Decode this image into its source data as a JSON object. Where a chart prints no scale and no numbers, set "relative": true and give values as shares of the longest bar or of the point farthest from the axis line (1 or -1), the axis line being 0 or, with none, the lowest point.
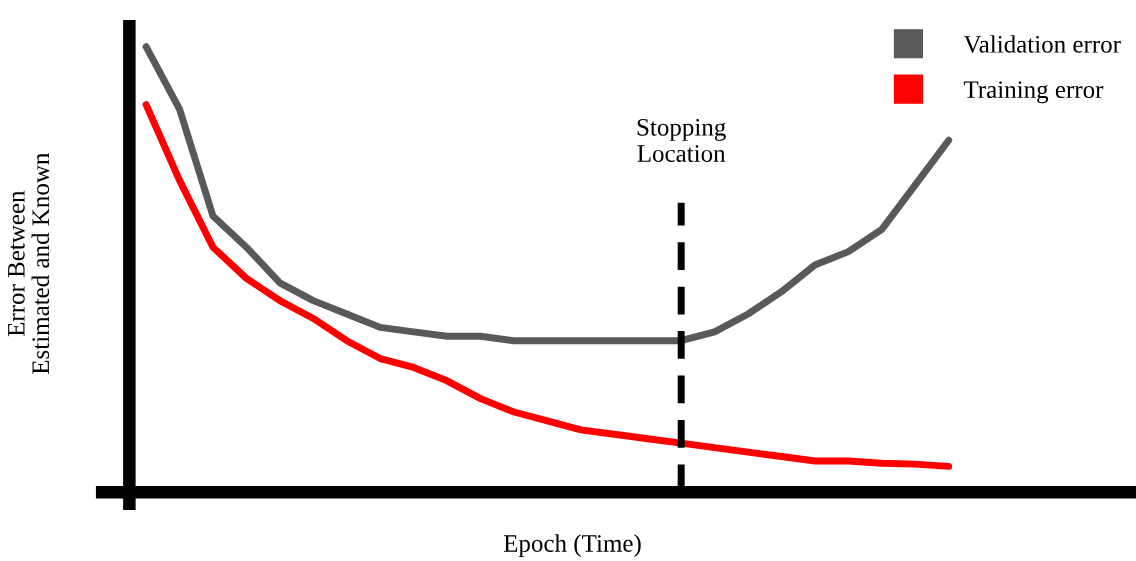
{
  "chart_data": {
    "type": "line",
    "relative": true,
    "xlabel": "Epoch (Time)",
    "ylabel": "Error Between\nEstimated and Known",
    "categories": [
      null,
      null,
      null,
      null,
      null,
      null,
      null,
      null,
      null,
      null,
      null,
      null,
      null,
      null,
      null,
      null,
      null,
      null,
      null,
      null,
      null,
      null,
      null,
      null,
      null
    ],
    "series": [
      {
        "name": "Validation error",
        "color": "#595959",
        "values": [
          1.0,
          0.86,
          0.62,
          0.55,
          0.47,
          0.43,
          0.4,
          0.37,
          0.36,
          0.35,
          0.35,
          0.34,
          0.34,
          0.34,
          0.34,
          0.34,
          0.34,
          0.36,
          0.4,
          0.45,
          0.51,
          0.54,
          0.59,
          0.69,
          0.79
        ]
      },
      {
        "name": "Training error",
        "color": "#ff0000",
        "values": [
          0.87,
          0.7,
          0.55,
          0.48,
          0.43,
          0.39,
          0.34,
          0.3,
          0.28,
          0.25,
          0.21,
          0.18,
          0.16,
          0.14,
          0.13,
          0.12,
          0.11,
          0.1,
          0.09,
          0.08,
          0.07,
          0.07,
          0.065,
          0.063,
          0.058
        ]
      }
    ],
    "annotations": [
      "Stopping\nLocation"
    ],
    "legend": "top right",
    "marker": "none",
    "line_style": "solid"
  }
}
